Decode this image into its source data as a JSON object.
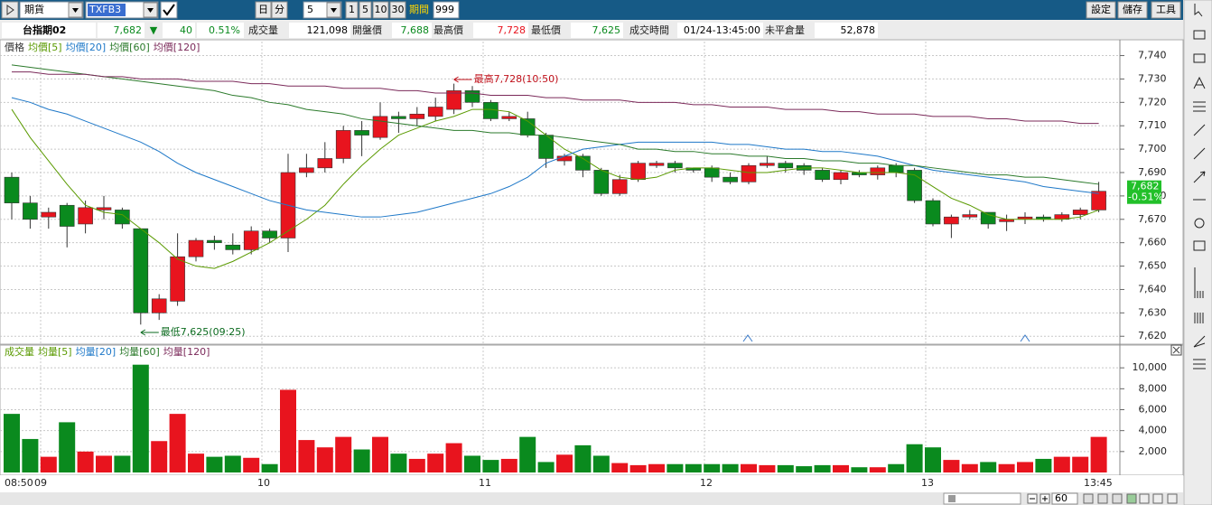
{
  "toolbar": {
    "market": "期貨",
    "symbol": "TXFB3",
    "unit_day": "日",
    "unit_min": "分",
    "interval": "5",
    "intervals": [
      "1",
      "5",
      "10",
      "30"
    ],
    "period_label": "期間",
    "period_value": "999",
    "buttons": [
      "設定",
      "儲存",
      "工具"
    ]
  },
  "info": {
    "name": "台指期02",
    "price": "7,682",
    "change_arrow": "▼",
    "change": "40",
    "change_pct": "0.51%",
    "fields": [
      {
        "label": "成交量",
        "value": "121,098"
      },
      {
        "label": "開盤價",
        "value": "7,688"
      },
      {
        "label": "最高價",
        "value": "7,728"
      },
      {
        "label": "最低價",
        "value": "7,625"
      },
      {
        "label": "成交時間",
        "value": "01/24-13:45:00"
      },
      {
        "label": "未平倉量",
        "value": "52,878"
      }
    ]
  },
  "zoom": "60",
  "chart_data": [
    {
      "type": "candlestick",
      "name": "價格",
      "name_color": "#333333",
      "up_color": "#e8141e",
      "down_color": "#0a8a1e",
      "grid": true,
      "ylim": [
        7617,
        7746
      ],
      "yticks": [
        {
          "value": 7620,
          "label": "7,620"
        },
        {
          "value": 7630,
          "label": "7,630"
        },
        {
          "value": 7640,
          "label": "7,640"
        },
        {
          "value": 7650,
          "label": "7,650"
        },
        {
          "value": 7660,
          "label": "7,660"
        },
        {
          "value": 7670,
          "label": "7,670"
        },
        {
          "value": 7680,
          "label": "7,680"
        },
        {
          "value": 7690,
          "label": "7,690"
        },
        {
          "value": 7700,
          "label": "7,700"
        },
        {
          "value": 7710,
          "label": "7,710"
        },
        {
          "value": 7720,
          "label": "7,720"
        },
        {
          "value": 7730,
          "label": "7,730"
        },
        {
          "value": 7740,
          "label": "7,740"
        }
      ],
      "x_labels": [
        "08:50",
        "09",
        "10",
        "11",
        "12",
        "13",
        "13:45"
      ],
      "open": [
        7688,
        7677,
        7671,
        7676,
        7668,
        7674,
        7674,
        7666,
        7630,
        7635,
        7654,
        7661,
        7659,
        7657,
        7665,
        7662,
        7690,
        7692,
        7696,
        7708,
        7705,
        7714,
        7713,
        7714,
        7717,
        7725,
        7720,
        7713,
        7713,
        7706,
        7695,
        7697,
        7691,
        7681,
        7687,
        7693,
        7694,
        7692,
        7692,
        7688,
        7686,
        7693,
        7694,
        7693,
        7691,
        7687,
        7690,
        7689,
        7693,
        7691,
        7678,
        7668,
        7671,
        7673,
        7669,
        7670,
        7671,
        7670,
        7672,
        7674
      ],
      "high": [
        7690,
        7680,
        7675,
        7677,
        7678,
        7680,
        7675,
        7666,
        7638,
        7664,
        7662,
        7663,
        7664,
        7667,
        7666,
        7698,
        7698,
        7703,
        7710,
        7712,
        7720,
        7716,
        7718,
        7722,
        7728,
        7727,
        7721,
        7716,
        7716,
        7707,
        7698,
        7698,
        7692,
        7689,
        7695,
        7695,
        7695,
        7692,
        7693,
        7690,
        7694,
        7697,
        7695,
        7694,
        7692,
        7691,
        7691,
        7693,
        7694,
        7692,
        7679,
        7672,
        7674,
        7673,
        7672,
        7673,
        7672,
        7673,
        7675,
        7686
      ],
      "low": [
        7670,
        7666,
        7666,
        7658,
        7664,
        7670,
        7666,
        7625,
        7627,
        7633,
        7652,
        7657,
        7655,
        7655,
        7660,
        7656,
        7688,
        7690,
        7694,
        7697,
        7704,
        7707,
        7710,
        7712,
        7715,
        7718,
        7712,
        7712,
        7705,
        7692,
        7693,
        7688,
        7680,
        7680,
        7686,
        7692,
        7690,
        7690,
        7686,
        7685,
        7685,
        7692,
        7690,
        7689,
        7686,
        7685,
        7688,
        7687,
        7688,
        7677,
        7667,
        7662,
        7670,
        7666,
        7665,
        7668,
        7669,
        7669,
        7670,
        7673
      ],
      "close": [
        7677,
        7670,
        7673,
        7667,
        7675,
        7675,
        7668,
        7630,
        7636,
        7654,
        7661,
        7660,
        7657,
        7665,
        7662,
        7690,
        7692,
        7696,
        7708,
        7706,
        7714,
        7713,
        7715,
        7718,
        7725,
        7720,
        7713,
        7714,
        7706,
        7696,
        7697,
        7691,
        7681,
        7687,
        7694,
        7694,
        7692,
        7691,
        7688,
        7686,
        7693,
        7694,
        7692,
        7691,
        7687,
        7690,
        7689,
        7692,
        7690,
        7678,
        7668,
        7671,
        7672,
        7668,
        7670,
        7671,
        7670,
        7672,
        7674,
        7682
      ],
      "series": [
        {
          "name": "均價[5]",
          "color": "#5a9a00",
          "values": [
            7717,
            7705,
            7695,
            7685,
            7676,
            7673,
            7672,
            7666,
            7660,
            7653,
            7650,
            7649,
            7652,
            7656,
            7660,
            7665,
            7670,
            7676,
            7685,
            7693,
            7700,
            7706,
            7709,
            7712,
            7714,
            7717,
            7717,
            7716,
            7712,
            7706,
            7700,
            7696,
            7691,
            7688,
            7687,
            7688,
            7691,
            7692,
            7692,
            7691,
            7690,
            7690,
            7691,
            7692,
            7692,
            7691,
            7690,
            7690,
            7690,
            7689,
            7684,
            7679,
            7676,
            7672,
            7670,
            7670,
            7670,
            7670,
            7671,
            7674
          ]
        },
        {
          "name": "均價[20]",
          "color": "#1e78c8",
          "values": [
            7722,
            7720,
            7717,
            7715,
            7712,
            7709,
            7706,
            7703,
            7699,
            7694,
            7690,
            7687,
            7684,
            7681,
            7678,
            7676,
            7674,
            7673,
            7672,
            7671,
            7671,
            7672,
            7673,
            7675,
            7677,
            7679,
            7681,
            7684,
            7688,
            7694,
            7697,
            7700,
            7701,
            7702,
            7703,
            7703,
            7703,
            7703,
            7703,
            7702,
            7702,
            7701,
            7700,
            7700,
            7699,
            7699,
            7698,
            7697,
            7695,
            7693,
            7691,
            7690,
            7689,
            7688,
            7687,
            7686,
            7684,
            7683,
            7682,
            7681
          ]
        },
        {
          "name": "均價[60]",
          "color": "#2b7a2b",
          "values": [
            7736,
            7735,
            7734,
            7733,
            7732,
            7731,
            7730,
            7729,
            7728,
            7727,
            7726,
            7725,
            7723,
            7722,
            7720,
            7719,
            7717,
            7716,
            7715,
            7713,
            7712,
            7711,
            7710,
            7709,
            7708,
            7708,
            7707,
            7707,
            7706,
            7706,
            7705,
            7704,
            7703,
            7702,
            7700,
            7700,
            7699,
            7699,
            7698,
            7698,
            7697,
            7697,
            7696,
            7696,
            7695,
            7695,
            7694,
            7694,
            7693,
            7693,
            7692,
            7691,
            7690,
            7689,
            7689,
            7688,
            7688,
            7687,
            7686,
            7685
          ]
        },
        {
          "name": "均價[120]",
          "color": "#7b2a5a",
          "values": [
            7733,
            7733,
            7732,
            7732,
            7732,
            7731,
            7731,
            7730,
            7730,
            7730,
            7729,
            7729,
            7729,
            7728,
            7728,
            7727,
            7727,
            7727,
            7726,
            7726,
            7726,
            7725,
            7725,
            7724,
            7724,
            7724,
            7723,
            7723,
            7723,
            7722,
            7722,
            7721,
            7721,
            7721,
            7720,
            7720,
            7720,
            7719,
            7719,
            7718,
            7718,
            7718,
            7717,
            7717,
            7717,
            7716,
            7716,
            7715,
            7715,
            7715,
            7714,
            7714,
            7714,
            7713,
            7713,
            7712,
            7712,
            7712,
            7711,
            7711
          ]
        }
      ],
      "annotations": [
        {
          "text": "最高7,728(10:50)",
          "color": "#c0101a"
        },
        {
          "text": "最低7,625(09:25)",
          "color": "#0a6a1e"
        }
      ],
      "last_tag": [
        "7,682",
        "-0.51%"
      ],
      "last_tag_color": "#22c02a"
    },
    {
      "type": "bar",
      "name": "成交量",
      "name_color": "#5a9a00",
      "grid": true,
      "ylim": [
        0,
        12000
      ],
      "yticks": [
        {
          "value": 2000,
          "label": "2,000"
        },
        {
          "value": 4000,
          "label": "4,000"
        },
        {
          "value": 6000,
          "label": "6,000"
        },
        {
          "value": 8000,
          "label": "8,000"
        },
        {
          "value": 10000,
          "label": "10,000"
        }
      ],
      "values": [
        5600,
        3200,
        1500,
        4800,
        2000,
        1600,
        1600,
        10300,
        3000,
        5600,
        1800,
        1500,
        1600,
        1400,
        800,
        7900,
        3100,
        2400,
        3400,
        2200,
        3400,
        1800,
        1300,
        1800,
        2800,
        1600,
        1200,
        1300,
        3400,
        1000,
        1700,
        2600,
        1600,
        900,
        700,
        800,
        800,
        800,
        800,
        800,
        800,
        700,
        700,
        600,
        700,
        700,
        500,
        500,
        800,
        2700,
        2400,
        1200,
        800,
        1000,
        800,
        1000,
        1300,
        1500,
        1500,
        3400
      ],
      "legend": [
        {
          "name": "均量[5]",
          "color": "#5a9a00"
        },
        {
          "name": "均量[20]",
          "color": "#1e78c8"
        },
        {
          "name": "均量[60]",
          "color": "#2b7a2b"
        },
        {
          "name": "均量[120]",
          "color": "#7b2a5a"
        }
      ]
    }
  ]
}
